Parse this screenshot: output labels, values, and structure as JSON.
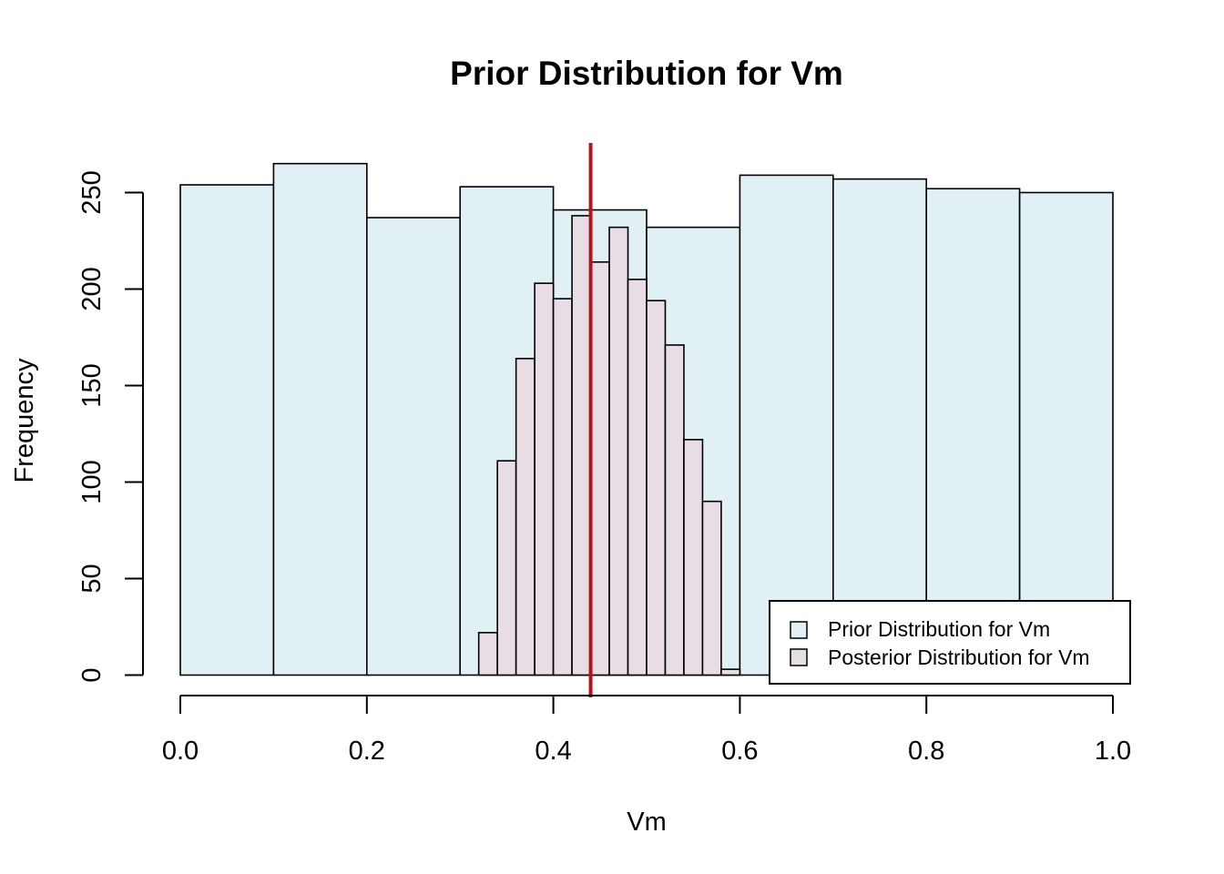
{
  "chart_data": {
    "type": "bar",
    "title": "Prior Distribution for Vm",
    "xlabel": "Vm",
    "ylabel": "Frequency",
    "xlim": [
      0,
      1
    ],
    "ylim": [
      0,
      270
    ],
    "x_ticks": [
      0.0,
      0.2,
      0.4,
      0.6,
      0.8,
      1.0
    ],
    "x_tick_labels": [
      "0.0",
      "0.2",
      "0.4",
      "0.6",
      "0.8",
      "1.0"
    ],
    "y_ticks": [
      0,
      50,
      100,
      150,
      200,
      250
    ],
    "y_tick_labels": [
      "0",
      "50",
      "100",
      "150",
      "200",
      "250"
    ],
    "grid": false,
    "legend_position": "bottom-right",
    "series": [
      {
        "name": "Prior Distribution for Vm",
        "color": "#e0f0f5",
        "bin_width": 0.1,
        "bin_starts": [
          0.0,
          0.1,
          0.2,
          0.3,
          0.4,
          0.5,
          0.6,
          0.7,
          0.8,
          0.9
        ],
        "values": [
          254,
          265,
          237,
          253,
          241,
          232,
          259,
          257,
          252,
          250
        ]
      },
      {
        "name": "Posterior Distribution for Vm",
        "color": "#e8dce5",
        "bin_width": 0.02,
        "bin_starts": [
          0.32,
          0.34,
          0.36,
          0.38,
          0.4,
          0.42,
          0.44,
          0.46,
          0.48,
          0.5,
          0.52,
          0.54,
          0.56,
          0.58
        ],
        "values": [
          22,
          111,
          164,
          203,
          195,
          238,
          214,
          232,
          205,
          194,
          171,
          122,
          90,
          3
        ]
      }
    ],
    "reference_line": {
      "x": 0.44,
      "color": "#b0151f"
    }
  }
}
